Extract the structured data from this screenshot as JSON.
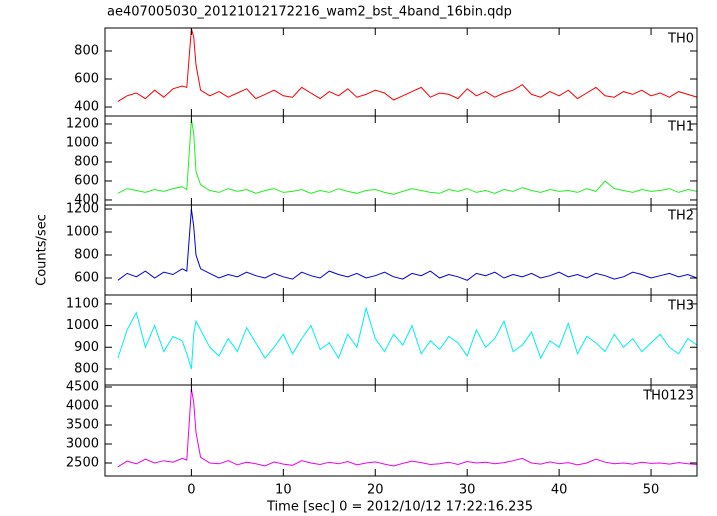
{
  "chart_data": [
    {
      "type": "line",
      "title": "ae407005030_20121012172216_wam2_bst_4band_16bin.qdp",
      "x": [
        -8,
        -7,
        -6,
        -5,
        -4,
        -3,
        -2,
        -1,
        -0.5,
        0,
        0.25,
        0.5,
        1,
        2,
        3,
        4,
        5,
        6,
        7,
        8,
        9,
        10,
        11,
        12,
        13,
        14,
        15,
        16,
        17,
        18,
        19,
        20,
        21,
        22,
        23,
        24,
        25,
        26,
        27,
        28,
        29,
        30,
        31,
        32,
        33,
        34,
        35,
        36,
        37,
        38,
        39,
        40,
        41,
        42,
        43,
        44,
        45,
        46,
        47,
        48,
        49,
        50,
        51,
        52,
        53,
        54,
        55,
        56
      ],
      "series": [
        {
          "name": "TH0",
          "color": "#ff0000",
          "values": [
            440,
            480,
            500,
            460,
            520,
            470,
            530,
            550,
            540,
            960,
            900,
            700,
            520,
            480,
            510,
            470,
            500,
            530,
            460,
            490,
            520,
            480,
            470,
            540,
            500,
            460,
            510,
            480,
            530,
            470,
            490,
            520,
            500,
            450,
            480,
            510,
            540,
            470,
            500,
            490,
            460,
            530,
            480,
            510,
            470,
            500,
            520,
            560,
            490,
            470,
            510,
            480,
            520,
            460,
            500,
            540,
            480,
            470,
            510,
            490,
            520,
            480,
            500,
            470,
            510,
            490,
            470,
            480
          ]
        }
      ],
      "xlim": [
        -9.4,
        55.0
      ],
      "xticks": [
        0,
        10,
        20,
        30,
        40,
        50
      ],
      "xtick_labels": false,
      "ylim": [
        336,
        964
      ],
      "yticks": [
        400,
        600,
        800
      ]
    },
    {
      "type": "line",
      "x": [
        -8,
        -7,
        -6,
        -5,
        -4,
        -3,
        -2,
        -1,
        -0.5,
        0,
        0.25,
        0.5,
        1,
        2,
        3,
        4,
        5,
        6,
        7,
        8,
        9,
        10,
        11,
        12,
        13,
        14,
        15,
        16,
        17,
        18,
        19,
        20,
        21,
        22,
        23,
        24,
        25,
        26,
        27,
        28,
        29,
        30,
        31,
        32,
        33,
        34,
        35,
        36,
        37,
        38,
        39,
        40,
        41,
        42,
        43,
        44,
        45,
        46,
        47,
        48,
        49,
        50,
        51,
        52,
        53,
        54,
        55,
        56
      ],
      "series": [
        {
          "name": "TH1",
          "color": "#22ee22",
          "values": [
            470,
            520,
            500,
            480,
            510,
            490,
            520,
            540,
            510,
            1250,
            1100,
            700,
            560,
            500,
            480,
            520,
            490,
            510,
            470,
            500,
            520,
            480,
            490,
            510,
            470,
            500,
            480,
            520,
            490,
            470,
            500,
            510,
            480,
            460,
            490,
            520,
            500,
            480,
            470,
            510,
            490,
            520,
            480,
            500,
            470,
            510,
            490,
            530,
            500,
            480,
            510,
            490,
            500,
            480,
            520,
            490,
            600,
            520,
            500,
            480,
            510,
            490,
            500,
            520,
            480,
            510,
            490,
            500
          ]
        }
      ],
      "xlim": [
        -9.4,
        55.0
      ],
      "xticks": [
        0,
        10,
        20,
        30,
        40,
        50
      ],
      "xtick_labels": false,
      "ylim": [
        347,
        1284
      ],
      "yticks": [
        400,
        600,
        800,
        1000,
        1200
      ]
    },
    {
      "type": "line",
      "ylabel": "Counts/sec",
      "x": [
        -8,
        -7,
        -6,
        -5,
        -4,
        -3,
        -2,
        -1,
        -0.5,
        0,
        0.25,
        0.5,
        1,
        2,
        3,
        4,
        5,
        6,
        7,
        8,
        9,
        10,
        11,
        12,
        13,
        14,
        15,
        16,
        17,
        18,
        19,
        20,
        21,
        22,
        23,
        24,
        25,
        26,
        27,
        28,
        29,
        30,
        31,
        32,
        33,
        34,
        35,
        36,
        37,
        38,
        39,
        40,
        41,
        42,
        43,
        44,
        45,
        46,
        47,
        48,
        49,
        50,
        51,
        52,
        53,
        54,
        55,
        56
      ],
      "series": [
        {
          "name": "TH2",
          "color": "#0000dd",
          "values": [
            580,
            640,
            610,
            660,
            600,
            650,
            630,
            680,
            660,
            1200,
            1050,
            800,
            680,
            640,
            600,
            630,
            610,
            650,
            620,
            600,
            640,
            610,
            590,
            650,
            620,
            600,
            660,
            630,
            610,
            640,
            600,
            620,
            650,
            610,
            590,
            640,
            620,
            660,
            600,
            630,
            610,
            580,
            640,
            620,
            650,
            600,
            630,
            610,
            640,
            600,
            620,
            650,
            610,
            630,
            600,
            640,
            620,
            590,
            610,
            650,
            630,
            600,
            620,
            640,
            610,
            630,
            600,
            620
          ]
        }
      ],
      "xlim": [
        -9.4,
        55.0
      ],
      "xticks": [
        0,
        10,
        20,
        30,
        40,
        50
      ],
      "xtick_labels": false,
      "ylim": [
        452,
        1235
      ],
      "yticks": [
        600,
        800,
        1000,
        1200
      ]
    },
    {
      "type": "line",
      "x": [
        -8,
        -7,
        -6,
        -5,
        -4,
        -3,
        -2,
        -1,
        -0.5,
        0,
        0.25,
        0.5,
        1,
        2,
        3,
        4,
        5,
        6,
        7,
        8,
        9,
        10,
        11,
        12,
        13,
        14,
        15,
        16,
        17,
        18,
        19,
        20,
        21,
        22,
        23,
        24,
        25,
        26,
        27,
        28,
        29,
        30,
        31,
        32,
        33,
        34,
        35,
        36,
        37,
        38,
        39,
        40,
        41,
        42,
        43,
        44,
        45,
        46,
        47,
        48,
        49,
        50,
        51,
        52,
        53,
        54,
        55,
        56
      ],
      "series": [
        {
          "name": "TH3",
          "color": "#00eeee",
          "values": [
            850,
            980,
            1060,
            900,
            1000,
            880,
            950,
            930,
            870,
            800,
            960,
            1020,
            980,
            900,
            860,
            940,
            880,
            990,
            920,
            850,
            900,
            960,
            870,
            940,
            1000,
            890,
            920,
            850,
            960,
            900,
            1080,
            940,
            880,
            960,
            910,
            1000,
            870,
            930,
            890,
            950,
            920,
            860,
            980,
            900,
            940,
            1020,
            880,
            910,
            970,
            850,
            930,
            900,
            1010,
            870,
            950,
            920,
            880,
            960,
            900,
            940,
            880,
            920,
            960,
            900,
            870,
            940,
            910,
            890
          ]
        }
      ],
      "xlim": [
        -9.4,
        55.0
      ],
      "xticks": [
        0,
        10,
        20,
        30,
        40,
        50
      ],
      "xtick_labels": false,
      "ylim": [
        726,
        1141
      ],
      "yticks": [
        800,
        900,
        1000,
        1100
      ]
    },
    {
      "type": "line",
      "xlabel": "Time [sec] 0 = 2012/10/12 17:22:16.235",
      "x": [
        -8,
        -7,
        -6,
        -5,
        -4,
        -3,
        -2,
        -1,
        -0.5,
        0,
        0.25,
        0.5,
        1,
        2,
        3,
        4,
        5,
        6,
        7,
        8,
        9,
        10,
        11,
        12,
        13,
        14,
        15,
        16,
        17,
        18,
        19,
        20,
        21,
        22,
        23,
        24,
        25,
        26,
        27,
        28,
        29,
        30,
        31,
        32,
        33,
        34,
        35,
        36,
        37,
        38,
        39,
        40,
        41,
        42,
        43,
        44,
        45,
        46,
        47,
        48,
        49,
        50,
        51,
        52,
        53,
        54,
        55,
        56
      ],
      "series": [
        {
          "name": "TH0123",
          "color": "#ee00ee",
          "values": [
            2400,
            2550,
            2480,
            2600,
            2500,
            2560,
            2520,
            2620,
            2580,
            4450,
            4100,
            3300,
            2650,
            2500,
            2480,
            2560,
            2450,
            2520,
            2480,
            2420,
            2530,
            2470,
            2440,
            2560,
            2500,
            2460,
            2520,
            2480,
            2540,
            2450,
            2500,
            2530,
            2470,
            2420,
            2490,
            2550,
            2510,
            2460,
            2480,
            2520,
            2460,
            2540,
            2500,
            2520,
            2480,
            2510,
            2560,
            2620,
            2500,
            2470,
            2530,
            2480,
            2510,
            2450,
            2500,
            2600,
            2520,
            2480,
            2500,
            2470,
            2520,
            2490,
            2500,
            2470,
            2510,
            2480,
            2460,
            2490
          ]
        }
      ],
      "xlim": [
        -9.4,
        55.0
      ],
      "xticks": [
        0,
        10,
        20,
        30,
        40,
        50
      ],
      "xtick_labels": true,
      "ylim": [
        2158,
        4553
      ],
      "yticks": [
        2500,
        3000,
        3500,
        4000,
        4500
      ]
    }
  ]
}
